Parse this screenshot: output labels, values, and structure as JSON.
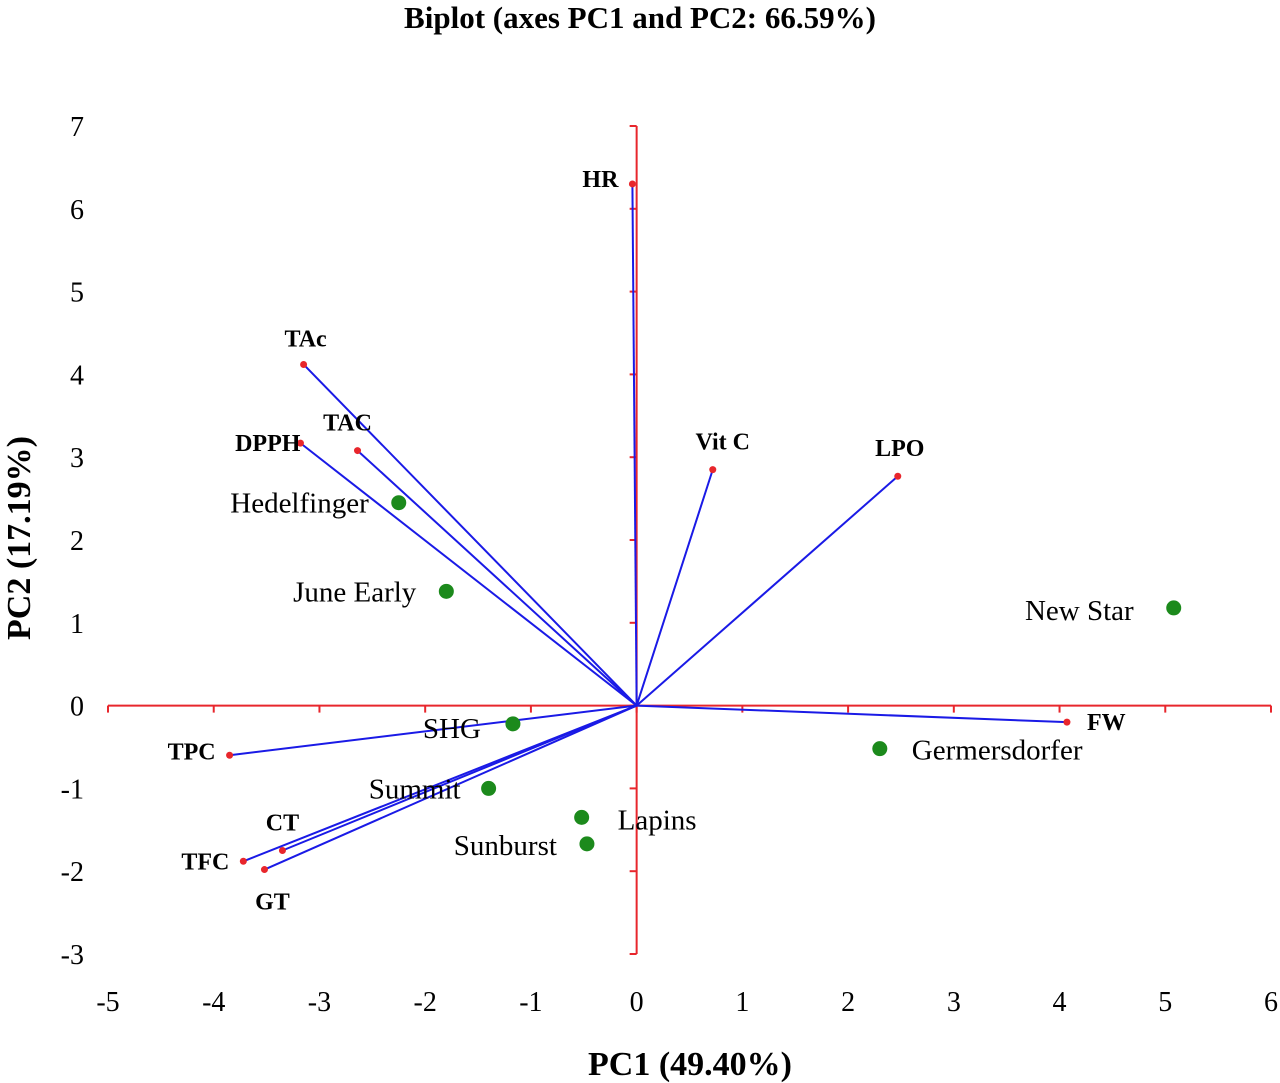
{
  "chart_data": {
    "type": "scatter",
    "title": "Biplot (axes PC1 and PC2: 66.59%)",
    "xlabel": "PC1 (49.40%)",
    "ylabel": "PC2 (17.19%)",
    "xlim": [
      -5,
      6
    ],
    "ylim": [
      -3,
      7
    ],
    "x_ticks": [
      "-5",
      "-4",
      "-3",
      "-2",
      "-1",
      "0",
      "1",
      "2",
      "3",
      "4",
      "5",
      "6"
    ],
    "y_ticks": [
      "-3",
      "-2",
      "-1",
      "0",
      "1",
      "2",
      "3",
      "4",
      "5",
      "6",
      "7"
    ],
    "grid": false,
    "legend": "none",
    "colors": {
      "axes": "#e8262c",
      "vectors": "#1a1ae6",
      "vector_tip": "#e8262c",
      "observations": "#1c8a1c"
    },
    "variables": [
      {
        "name": "HR",
        "x": -0.04,
        "y": 6.3
      },
      {
        "name": "TAc",
        "x": -3.15,
        "y": 4.12
      },
      {
        "name": "TAC",
        "x": -2.64,
        "y": 3.08
      },
      {
        "name": "DPPH",
        "x": -3.18,
        "y": 3.17
      },
      {
        "name": "Vit C",
        "x": 0.72,
        "y": 2.85
      },
      {
        "name": "LPO",
        "x": 2.47,
        "y": 2.77
      },
      {
        "name": "FW",
        "x": 4.07,
        "y": -0.2
      },
      {
        "name": "TPC",
        "x": -3.85,
        "y": -0.6
      },
      {
        "name": "CT",
        "x": -3.35,
        "y": -1.75
      },
      {
        "name": "TFC",
        "x": -3.72,
        "y": -1.88
      },
      {
        "name": "GT",
        "x": -3.52,
        "y": -1.98
      }
    ],
    "observations": [
      {
        "name": "Hedelfinger",
        "x": -2.25,
        "y": 2.45
      },
      {
        "name": "June Early",
        "x": -1.8,
        "y": 1.38
      },
      {
        "name": "New Star",
        "x": 5.08,
        "y": 1.18
      },
      {
        "name": "SHG",
        "x": -1.17,
        "y": -0.22
      },
      {
        "name": "Germersdorfer",
        "x": 2.3,
        "y": -0.52
      },
      {
        "name": "Summit",
        "x": -1.4,
        "y": -1.0
      },
      {
        "name": "Lapins",
        "x": -0.52,
        "y": -1.35
      },
      {
        "name": "Sunburst",
        "x": -0.47,
        "y": -1.67
      }
    ]
  }
}
